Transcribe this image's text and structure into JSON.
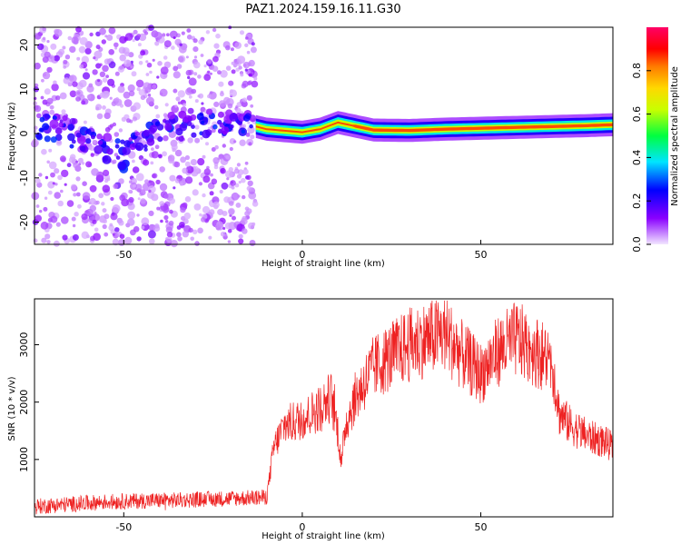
{
  "title": "PAZ1.2024.159.16.11.G30",
  "chart_data": [
    {
      "type": "heatmap",
      "xlabel": "Height of straight line (km)",
      "ylabel": "Frequency (Hz)",
      "xlim": [
        -75,
        87
      ],
      "ylim": [
        -25,
        24
      ],
      "x_ticks": [
        -50,
        0,
        50
      ],
      "y_ticks": [
        -20,
        -10,
        0,
        10,
        20
      ],
      "colorbar": {
        "label": "Normalized spectral amplitude",
        "range": [
          0.0,
          1.0
        ],
        "ticks": [
          0.0,
          0.2,
          0.4,
          0.6,
          0.8
        ],
        "colormap": "purple-blue-cyan-green-yellow-red-magenta"
      },
      "regions": [
        {
          "x_range": [
            -75,
            -13
          ],
          "description": "scattered noise across frequencies",
          "amplitude_range": [
            0.05,
            0.2
          ]
        },
        {
          "x_range": [
            -13,
            87
          ],
          "description": "signal line near 0–2 Hz",
          "center_freq": [
            0,
            2
          ],
          "peak_amplitude": 0.85
        }
      ],
      "ridge_x": [
        -75,
        -60,
        -50,
        -40,
        -25,
        -15,
        -10,
        0,
        5,
        10,
        20,
        30,
        40,
        50,
        60,
        70,
        80,
        87
      ],
      "ridge_freq": [
        2.5,
        -1,
        -5,
        1,
        3,
        2,
        1,
        0.3,
        1,
        2.5,
        0.8,
        0.7,
        1,
        1.2,
        1.4,
        1.6,
        1.8,
        2
      ]
    },
    {
      "type": "line",
      "xlabel": "Height of straight line (km)",
      "ylabel": "SNR (10 * v/v)",
      "xlim": [
        -75,
        87
      ],
      "ylim": [
        0,
        3800
      ],
      "x_ticks": [
        -50,
        0,
        50
      ],
      "y_ticks": [
        1000,
        2000,
        3000
      ],
      "color": "#ee2222",
      "series": [
        {
          "name": "",
          "x": [
            -75,
            -65,
            -55,
            -45,
            -35,
            -25,
            -15,
            -10,
            -8,
            -5,
            0,
            5,
            8,
            10,
            11,
            12,
            15,
            20,
            25,
            30,
            35,
            40,
            45,
            50,
            55,
            60,
            65,
            70,
            72,
            75,
            80,
            85,
            87
          ],
          "y": [
            180,
            220,
            260,
            280,
            290,
            310,
            330,
            340,
            1200,
            1600,
            1700,
            1900,
            2100,
            1500,
            900,
            1600,
            2100,
            2600,
            2800,
            3000,
            3100,
            3200,
            2800,
            2500,
            2900,
            3100,
            2900,
            2700,
            1800,
            1600,
            1400,
            1300,
            1200
          ]
        }
      ]
    }
  ]
}
